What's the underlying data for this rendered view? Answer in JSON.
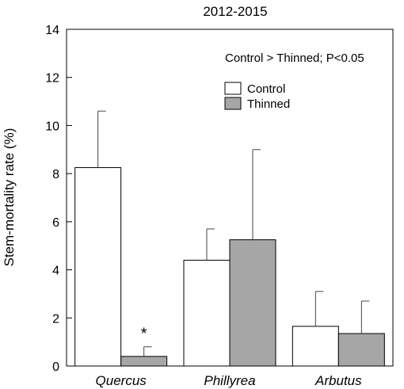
{
  "chart_data": {
    "type": "bar",
    "title": "2012-2015",
    "ylabel": "Stem-mortality rate (%)",
    "xlabel": "",
    "ylim": [
      0,
      14
    ],
    "yticks": [
      "0",
      "2",
      "4",
      "6",
      "8",
      "10",
      "12",
      "14"
    ],
    "categories": [
      "Quercus",
      "Phillyrea",
      "Arbutus"
    ],
    "series": [
      {
        "name": "Control",
        "color": "#ffffff",
        "values": [
          8.25,
          4.4,
          1.65
        ],
        "errors": [
          2.35,
          1.3,
          1.45
        ]
      },
      {
        "name": "Thinned",
        "color": "#a6a6a6",
        "values": [
          0.4,
          5.25,
          1.35
        ],
        "errors": [
          0.4,
          3.75,
          1.35
        ]
      }
    ],
    "annotation": "Control > Thinned; P<0.05",
    "significance_marker": "*",
    "grid": false,
    "legend_position": "top-right"
  }
}
